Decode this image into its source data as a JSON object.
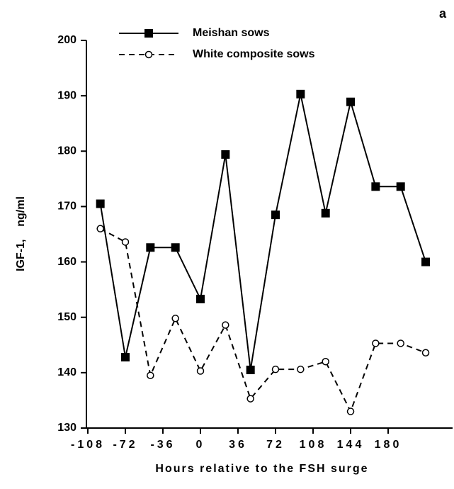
{
  "chart_data": {
    "type": "line",
    "panel_label": "a",
    "x_label": "Hours relative to the FSH surge",
    "y_label": "IGF-1,    ng/ml",
    "x": [
      -96,
      -72,
      -48,
      -24,
      0,
      24,
      48,
      72,
      96,
      120,
      144,
      168,
      192,
      216
    ],
    "series": [
      {
        "name": "Meishan sows",
        "color": "#000000",
        "marker": "filled-square",
        "dash": "solid",
        "values": [
          170.5,
          142.8,
          162.6,
          162.6,
          153.3,
          179.4,
          140.5,
          168.5,
          190.3,
          168.8,
          188.9,
          173.6,
          173.6,
          160.0
        ]
      },
      {
        "name": "White composite sows",
        "color": "#000000",
        "marker": "open-circle",
        "dash": "dashed",
        "values": [
          166.0,
          163.6,
          139.5,
          149.8,
          140.3,
          148.6,
          135.3,
          140.6,
          140.6,
          142.0,
          133.0,
          145.3,
          145.3,
          143.6
        ]
      }
    ],
    "xlim": [
      -108,
      235
    ],
    "xticks": [
      -108,
      -72,
      -36,
      0,
      36,
      72,
      108,
      144,
      180
    ],
    "ylim": [
      130,
      200
    ],
    "yticks": [
      130,
      140,
      150,
      160,
      170,
      180,
      190,
      200
    ],
    "grid": false,
    "legend": "top"
  }
}
